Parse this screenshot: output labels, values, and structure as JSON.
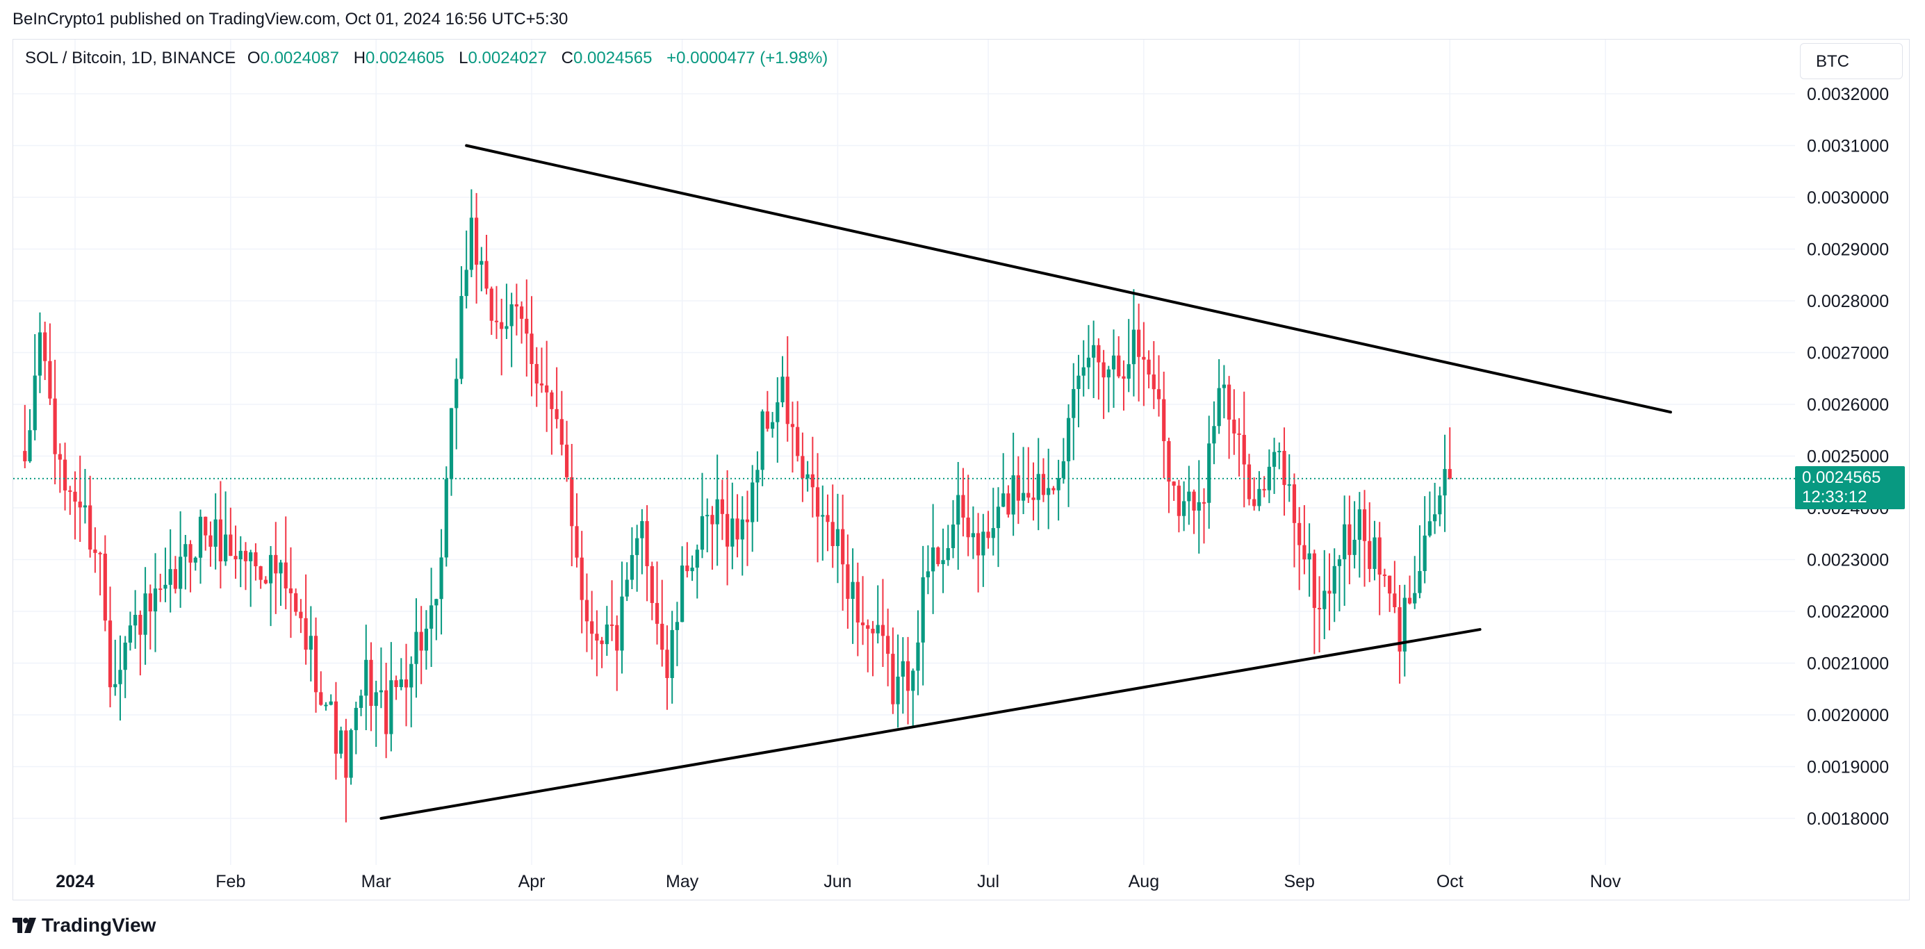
{
  "header": {
    "publisher_line": "BeInCrypto1 published on TradingView.com, Oct 01, 2024 16:56 UTC+5:30"
  },
  "legend": {
    "symbol": "SOL / Bitcoin, 1D, BINANCE",
    "open_label": "O",
    "open": "0.0024087",
    "high_label": "H",
    "high": "0.0024605",
    "low_label": "L",
    "low": "0.0024027",
    "close_label": "C",
    "close": "0.0024565",
    "change": "+0.0000477 (+1.98%)"
  },
  "currency": "BTC",
  "price_tag": {
    "price": "0.0024565",
    "countdown": "12:33:12"
  },
  "footer": {
    "brand": "TradingView"
  },
  "colors": {
    "up": "#089981",
    "down": "#f23645",
    "grid": "#f0f3fa",
    "trendline": "#000000"
  },
  "chart_data": {
    "type": "candlestick",
    "title": "SOL / Bitcoin, 1D, BINANCE",
    "pair": "SOL/BTC",
    "interval": "1D",
    "exchange": "BINANCE",
    "ylim": [
      0.00172,
      0.00326
    ],
    "y_ticks": [
      "0.0018000",
      "0.0019000",
      "0.0020000",
      "0.0021000",
      "0.0022000",
      "0.0023000",
      "0.0024000",
      "0.0025000",
      "0.0026000",
      "0.0027000",
      "0.0028000",
      "0.0029000",
      "0.0030000",
      "0.0031000",
      "0.0032000"
    ],
    "x_range_days": [
      -10,
      326
    ],
    "x_ticks": [
      {
        "label": "2024",
        "day": 0,
        "bold": true
      },
      {
        "label": "Feb",
        "day": 31
      },
      {
        "label": "Mar",
        "day": 60
      },
      {
        "label": "Apr",
        "day": 91
      },
      {
        "label": "May",
        "day": 121
      },
      {
        "label": "Jun",
        "day": 152
      },
      {
        "label": "Jul",
        "day": 182
      },
      {
        "label": "Aug",
        "day": 213
      },
      {
        "label": "Sep",
        "day": 244
      },
      {
        "label": "Oct",
        "day": 274
      },
      {
        "label": "Nov",
        "day": 305
      }
    ],
    "last_price": 0.0024565,
    "anchors": [
      {
        "day": -10,
        "close": 0.00245
      },
      {
        "day": -7,
        "close": 0.00275
      },
      {
        "day": -3,
        "close": 0.00245
      },
      {
        "day": 0,
        "close": 0.00243
      },
      {
        "day": 5,
        "close": 0.0023
      },
      {
        "day": 7,
        "close": 0.00208
      },
      {
        "day": 12,
        "close": 0.00218
      },
      {
        "day": 18,
        "close": 0.00222
      },
      {
        "day": 25,
        "close": 0.00236
      },
      {
        "day": 31,
        "close": 0.00232
      },
      {
        "day": 40,
        "close": 0.00228
      },
      {
        "day": 47,
        "close": 0.00212
      },
      {
        "day": 54,
        "close": 0.0019
      },
      {
        "day": 58,
        "close": 0.00207
      },
      {
        "day": 62,
        "close": 0.002
      },
      {
        "day": 68,
        "close": 0.00214
      },
      {
        "day": 72,
        "close": 0.00218
      },
      {
        "day": 77,
        "close": 0.0028
      },
      {
        "day": 79,
        "close": 0.00295
      },
      {
        "day": 82,
        "close": 0.00278
      },
      {
        "day": 89,
        "close": 0.00275
      },
      {
        "day": 93,
        "close": 0.00265
      },
      {
        "day": 98,
        "close": 0.00246
      },
      {
        "day": 102,
        "close": 0.00218
      },
      {
        "day": 108,
        "close": 0.00215
      },
      {
        "day": 113,
        "close": 0.00236
      },
      {
        "day": 118,
        "close": 0.00208
      },
      {
        "day": 122,
        "close": 0.0023
      },
      {
        "day": 128,
        "close": 0.00238
      },
      {
        "day": 133,
        "close": 0.00235
      },
      {
        "day": 137,
        "close": 0.00255
      },
      {
        "day": 141,
        "close": 0.00262
      },
      {
        "day": 145,
        "close": 0.00245
      },
      {
        "day": 152,
        "close": 0.00232
      },
      {
        "day": 157,
        "close": 0.00218
      },
      {
        "day": 161,
        "close": 0.00212
      },
      {
        "day": 163,
        "close": 0.00205
      },
      {
        "day": 166,
        "close": 0.00208
      },
      {
        "day": 170,
        "close": 0.00228
      },
      {
        "day": 176,
        "close": 0.00238
      },
      {
        "day": 181,
        "close": 0.00232
      },
      {
        "day": 187,
        "close": 0.00244
      },
      {
        "day": 194,
        "close": 0.00245
      },
      {
        "day": 198,
        "close": 0.00255
      },
      {
        "day": 202,
        "close": 0.0027
      },
      {
        "day": 208,
        "close": 0.00268
      },
      {
        "day": 211,
        "close": 0.00272
      },
      {
        "day": 215,
        "close": 0.00265
      },
      {
        "day": 218,
        "close": 0.00248
      },
      {
        "day": 221,
        "close": 0.0024
      },
      {
        "day": 225,
        "close": 0.00245
      },
      {
        "day": 228,
        "close": 0.00264
      },
      {
        "day": 232,
        "close": 0.0025
      },
      {
        "day": 236,
        "close": 0.00242
      },
      {
        "day": 240,
        "close": 0.0025
      },
      {
        "day": 244,
        "close": 0.00235
      },
      {
        "day": 248,
        "close": 0.0022
      },
      {
        "day": 252,
        "close": 0.00232
      },
      {
        "day": 256,
        "close": 0.00236
      },
      {
        "day": 260,
        "close": 0.00228
      },
      {
        "day": 264,
        "close": 0.00215
      },
      {
        "day": 267,
        "close": 0.00228
      },
      {
        "day": 270,
        "close": 0.00238
      },
      {
        "day": 273,
        "close": 0.002441
      },
      {
        "day": 274,
        "close": 0.0024565
      }
    ],
    "trendlines": [
      {
        "name": "upper-resistance",
        "from": {
          "day": 78,
          "price": 0.0031
        },
        "to": {
          "day": 318,
          "price": 0.002585
        }
      },
      {
        "name": "lower-support",
        "from": {
          "day": 61,
          "price": 0.0018
        },
        "to": {
          "day": 280,
          "price": 0.002165
        }
      }
    ]
  }
}
